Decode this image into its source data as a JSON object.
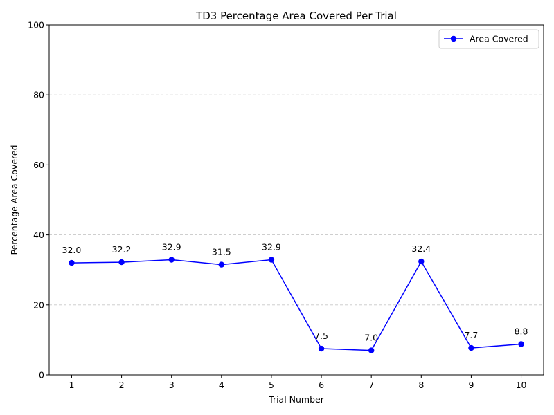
{
  "chart_data": {
    "type": "line",
    "title": "TD3 Percentage Area Covered Per Trial",
    "xlabel": "Trial Number",
    "ylabel": "Percentage Area Covered",
    "x": [
      1,
      2,
      3,
      4,
      5,
      6,
      7,
      8,
      9,
      10
    ],
    "series": [
      {
        "name": "Area Covered",
        "values": [
          32.0,
          32.2,
          32.9,
          31.5,
          32.9,
          7.5,
          7.0,
          32.4,
          7.7,
          8.8
        ],
        "labels": [
          "32.0",
          "32.2",
          "32.9",
          "31.5",
          "32.9",
          "7.5",
          "7.0",
          "32.4",
          "7.7",
          "8.8"
        ],
        "color": "#0000ff",
        "marker": "circle"
      }
    ],
    "xlim": [
      0.55,
      10.45
    ],
    "ylim": [
      0,
      100
    ],
    "yticks": [
      0,
      20,
      40,
      60,
      80,
      100
    ],
    "xticks": [
      1,
      2,
      3,
      4,
      5,
      6,
      7,
      8,
      9,
      10
    ],
    "grid": "y-dashed",
    "legend": "top-right"
  }
}
